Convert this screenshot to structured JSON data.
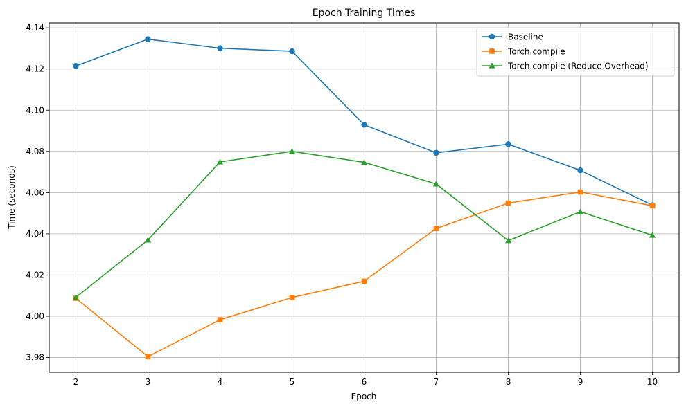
{
  "chart_data": {
    "type": "line",
    "title": "Epoch Training Times",
    "xlabel": "Epoch",
    "ylabel": "Time (seconds)",
    "x": [
      2,
      3,
      4,
      5,
      6,
      7,
      8,
      9,
      10
    ],
    "xlim": [
      1.63,
      10.37
    ],
    "ylim": [
      3.9728,
      4.1424
    ],
    "xticks": [
      "2",
      "3",
      "4",
      "5",
      "6",
      "7",
      "8",
      "9",
      "10"
    ],
    "yticks": [
      "3.98",
      "4.00",
      "4.02",
      "4.04",
      "4.06",
      "4.08",
      "4.10",
      "4.12",
      "4.14"
    ],
    "ytick_values": [
      3.98,
      4.0,
      4.02,
      4.04,
      4.06,
      4.08,
      4.1,
      4.12,
      4.14
    ],
    "grid": true,
    "legend_position": "top-right",
    "series": [
      {
        "name": "Baseline",
        "color": "#1f77b4",
        "marker": "circle",
        "values": [
          4.1215,
          4.1345,
          4.1301,
          4.1286,
          4.0929,
          4.0793,
          4.0835,
          4.0708,
          4.0539
        ]
      },
      {
        "name": "Torch.compile",
        "color": "#ff7f0e",
        "marker": "square",
        "values": [
          4.0087,
          3.9804,
          3.9983,
          4.0091,
          4.017,
          4.0426,
          4.0549,
          4.0603,
          4.0536
        ]
      },
      {
        "name": "Torch.compile (Reduce Overhead)",
        "color": "#2ca02c",
        "marker": "triangle",
        "values": [
          4.0092,
          4.037,
          4.0749,
          4.08,
          4.0747,
          4.0642,
          4.0367,
          4.0507,
          4.0393
        ]
      }
    ]
  }
}
